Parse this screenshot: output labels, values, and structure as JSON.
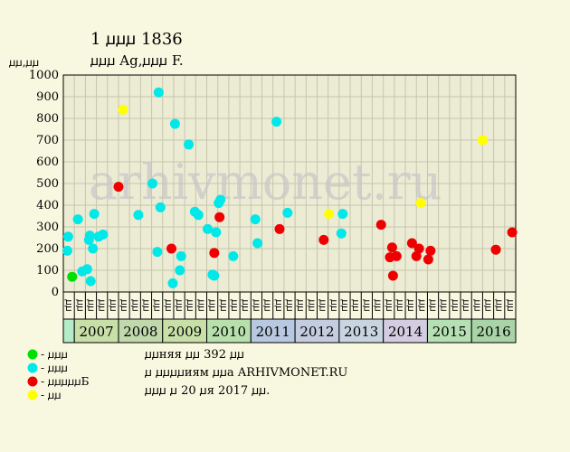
{
  "header": {
    "title": "1 ꙡꙡꙡ 1836",
    "subtitle": "ꙡꙡꙡ Ag,ꙡꙡꙡ F.",
    "y_unit": "ꙡꙡ,ꙡꙡ"
  },
  "watermark": "arhivmonet.ru",
  "legend": [
    {
      "label": "- ꙡꙡꙡ",
      "color": "#00e000"
    },
    {
      "label": "- ꙡꙡꙡ",
      "color": "#00e8e8"
    },
    {
      "label": "- ꙡꙡꙡꙡꙡБ",
      "color": "#ee0000"
    },
    {
      "label": "- ꙡꙡ",
      "color": "#ffff00"
    }
  ],
  "info": [
    "ꙡꙡняя ꙡꙡ 392 ꙡꙡ",
    "ꙡ ꙡꙡꙡꙡиям ꙡꙡa ARHIVMONET.RU",
    "ꙡꙡꙡ ꙡ 20 ꙡя 2017 ꙡꙡ."
  ],
  "colors": {
    "background": "#f8f8e0",
    "plot_bg": "#ecebd3",
    "grid": "#c6c6ae",
    "xf": "#00e000",
    "vf": "#00e8e8",
    "vf_plus": "#ee0000",
    "unc": "#ffff00"
  },
  "chart_data": {
    "type": "scatter",
    "ylim": [
      0,
      1000
    ],
    "yticks": [
      0,
      100,
      200,
      300,
      400,
      500,
      600,
      700,
      800,
      900,
      1000
    ],
    "grid": true,
    "quarter_labels": [
      "ꙡꙡ",
      "ꙡꙡ",
      "ꙡꙡ",
      "ꙡꙡ",
      "ꙡꙡ",
      "ꙡꙡ",
      "ꙡꙡ",
      "ꙡꙡ",
      "ꙡꙡ",
      "ꙡꙡ",
      "ꙡꙡ",
      "ꙡꙡ",
      "ꙡꙡ",
      "ꙡꙡ",
      "ꙡꙡ",
      "ꙡꙡ",
      "ꙡꙡ",
      "ꙡꙡ",
      "ꙡꙡ",
      "ꙡꙡ",
      "ꙡꙡ",
      "ꙡꙡ",
      "ꙡꙡ",
      "ꙡꙡ",
      "ꙡꙡ",
      "ꙡꙡ",
      "ꙡꙡ",
      "ꙡꙡ",
      "ꙡꙡ",
      "ꙡꙡ",
      "ꙡꙡ",
      "ꙡꙡ",
      "ꙡꙡ",
      "ꙡꙡ",
      "ꙡꙡ",
      "ꙡꙡ",
      "ꙡꙡ",
      "ꙡꙡ",
      "ꙡꙡ",
      "ꙡꙡ",
      "ꙡꙡ"
    ],
    "x_start": 2006.75,
    "x_end": 2017.0,
    "years": [
      {
        "label": "",
        "start": 2006.75,
        "end": 2007.0,
        "color": "#b4ecc8"
      },
      {
        "label": "2007",
        "start": 2007.0,
        "end": 2008.0,
        "color": "#c8e0a8"
      },
      {
        "label": "2008",
        "start": 2008.0,
        "end": 2009.0,
        "color": "#c0d8ac"
      },
      {
        "label": "2009",
        "start": 2009.0,
        "end": 2010.0,
        "color": "#c8e0a8"
      },
      {
        "label": "2010",
        "start": 2010.0,
        "end": 2011.0,
        "color": "#b8e0ac"
      },
      {
        "label": "2011",
        "start": 2011.0,
        "end": 2012.0,
        "color": "#b8c8e0"
      },
      {
        "label": "2012",
        "start": 2012.0,
        "end": 2013.0,
        "color": "#c4cce0"
      },
      {
        "label": "2013",
        "start": 2013.0,
        "end": 2014.0,
        "color": "#c8d4e0"
      },
      {
        "label": "2014",
        "start": 2014.0,
        "end": 2015.0,
        "color": "#d4cce0"
      },
      {
        "label": "2015",
        "start": 2015.0,
        "end": 2016.0,
        "color": "#b4e0b4"
      },
      {
        "label": "2016",
        "start": 2016.0,
        "end": 2017.0,
        "color": "#a8d4a8"
      }
    ],
    "series": [
      {
        "key": "xf",
        "color": "#00e000",
        "points": [
          {
            "x": 2006.95,
            "y": 70
          }
        ]
      },
      {
        "key": "vf",
        "color": "#00e8e8",
        "points": [
          {
            "x": 2006.84,
            "y": 190
          },
          {
            "x": 2006.86,
            "y": 255
          },
          {
            "x": 2007.08,
            "y": 335
          },
          {
            "x": 2007.18,
            "y": 95
          },
          {
            "x": 2007.29,
            "y": 105
          },
          {
            "x": 2007.33,
            "y": 240
          },
          {
            "x": 2007.35,
            "y": 260
          },
          {
            "x": 2007.37,
            "y": 50
          },
          {
            "x": 2007.42,
            "y": 200
          },
          {
            "x": 2007.45,
            "y": 360
          },
          {
            "x": 2007.55,
            "y": 255
          },
          {
            "x": 2007.65,
            "y": 265
          },
          {
            "x": 2008.45,
            "y": 355
          },
          {
            "x": 2008.77,
            "y": 500
          },
          {
            "x": 2008.88,
            "y": 185
          },
          {
            "x": 2008.91,
            "y": 920
          },
          {
            "x": 2008.95,
            "y": 390
          },
          {
            "x": 2009.23,
            "y": 40
          },
          {
            "x": 2009.28,
            "y": 775
          },
          {
            "x": 2009.39,
            "y": 100
          },
          {
            "x": 2009.42,
            "y": 165
          },
          {
            "x": 2009.59,
            "y": 680
          },
          {
            "x": 2009.73,
            "y": 370
          },
          {
            "x": 2009.81,
            "y": 355
          },
          {
            "x": 2010.02,
            "y": 290
          },
          {
            "x": 2010.13,
            "y": 80
          },
          {
            "x": 2010.17,
            "y": 75
          },
          {
            "x": 2010.21,
            "y": 275
          },
          {
            "x": 2010.27,
            "y": 410
          },
          {
            "x": 2010.31,
            "y": 425
          },
          {
            "x": 2010.6,
            "y": 165
          },
          {
            "x": 2011.1,
            "y": 335
          },
          {
            "x": 2011.15,
            "y": 225
          },
          {
            "x": 2011.58,
            "y": 785
          },
          {
            "x": 2011.83,
            "y": 365
          },
          {
            "x": 2013.05,
            "y": 270
          },
          {
            "x": 2013.08,
            "y": 360
          }
        ]
      },
      {
        "key": "vf_plus",
        "color": "#ee0000",
        "points": [
          {
            "x": 2008.0,
            "y": 485
          },
          {
            "x": 2009.2,
            "y": 200
          },
          {
            "x": 2010.17,
            "y": 180
          },
          {
            "x": 2010.29,
            "y": 345
          },
          {
            "x": 2011.65,
            "y": 290
          },
          {
            "x": 2012.65,
            "y": 240
          },
          {
            "x": 2013.95,
            "y": 310
          },
          {
            "x": 2014.15,
            "y": 160
          },
          {
            "x": 2014.2,
            "y": 205
          },
          {
            "x": 2014.22,
            "y": 75
          },
          {
            "x": 2014.3,
            "y": 165
          },
          {
            "x": 2014.65,
            "y": 225
          },
          {
            "x": 2014.75,
            "y": 165
          },
          {
            "x": 2014.81,
            "y": 200
          },
          {
            "x": 2015.02,
            "y": 150
          },
          {
            "x": 2015.07,
            "y": 190
          },
          {
            "x": 2016.55,
            "y": 195
          },
          {
            "x": 2016.92,
            "y": 275
          }
        ]
      },
      {
        "key": "unc",
        "color": "#ffff00",
        "points": [
          {
            "x": 2008.1,
            "y": 840
          },
          {
            "x": 2012.77,
            "y": 360
          },
          {
            "x": 2014.85,
            "y": 410
          },
          {
            "x": 2016.25,
            "y": 700
          }
        ]
      }
    ]
  }
}
